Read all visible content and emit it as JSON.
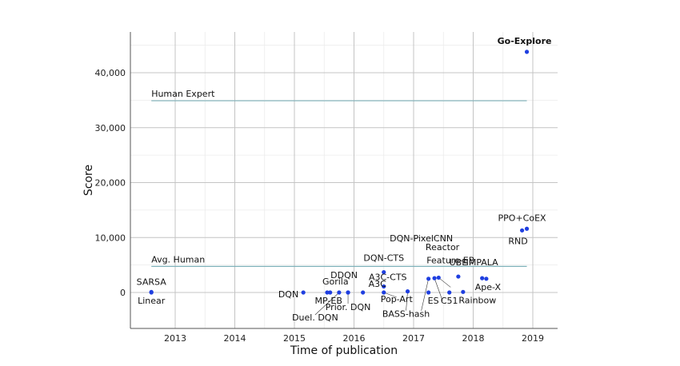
{
  "chart_data": {
    "type": "scatter",
    "title": "",
    "xlabel": "Time of publication",
    "ylabel": "Score",
    "xlim": [
      2012.25,
      2019.4
    ],
    "ylim": [
      -6500,
      47000
    ],
    "xticks": [
      2013,
      2014,
      2015,
      2016,
      2017,
      2018,
      2019
    ],
    "xtick_labels": [
      "2013",
      "2014",
      "2015",
      "2016",
      "2017",
      "2018",
      "2019"
    ],
    "yticks": [
      0,
      10000,
      20000,
      30000,
      40000
    ],
    "ytick_labels": [
      "0",
      "10,000",
      "20,000",
      "30,000",
      "40,000"
    ],
    "grid": true,
    "colors": {
      "points": "#1f3fe0",
      "reference_lines": "#7fb2ba",
      "grid_minor": "#ebebeb",
      "grid_major": "#c4c4c4"
    },
    "reference_lines": [
      {
        "name": "Human Expert",
        "y": 34900,
        "x_start": 2012.6,
        "x_end": 2018.9
      },
      {
        "name": "Avg. Human",
        "y": 4750,
        "x_start": 2012.6,
        "x_end": 2018.9
      }
    ],
    "points": [
      {
        "name": "SARSA",
        "x": 2012.6,
        "y": 100
      },
      {
        "name": "Linear",
        "x": 2012.6,
        "y": 0
      },
      {
        "name": "DQN",
        "x": 2015.15,
        "y": 0
      },
      {
        "name": "Gorila",
        "x": 2015.55,
        "y": 0
      },
      {
        "name": "MP-EB",
        "x": 2015.6,
        "y": 0
      },
      {
        "name": "Duel. DQN",
        "x": 2015.75,
        "y": 0
      },
      {
        "name": "DDQN",
        "x": 2015.9,
        "y": 0
      },
      {
        "name": "Prior. DQN",
        "x": 2015.9,
        "y": 0
      },
      {
        "name": "A3C",
        "x": 2016.15,
        "y": 0
      },
      {
        "name": "DQN-CTS",
        "x": 2016.5,
        "y": 3700
      },
      {
        "name": "A3C-CTS",
        "x": 2016.5,
        "y": 1100
      },
      {
        "name": "Pop-Art",
        "x": 2016.5,
        "y": 0
      },
      {
        "name": "BASS-hash",
        "x": 2016.9,
        "y": 200
      },
      {
        "name": "ES",
        "x": 2017.25,
        "y": 0
      },
      {
        "name": "DQN-PixelCNN",
        "x": 2017.25,
        "y": 2500
      },
      {
        "name": "Reactor",
        "x": 2017.35,
        "y": 2600
      },
      {
        "name": "Feature-EB",
        "x": 2017.42,
        "y": 2700
      },
      {
        "name": "C51",
        "x": 2017.6,
        "y": 0
      },
      {
        "name": "UBE",
        "x": 2017.75,
        "y": 2900
      },
      {
        "name": "Rainbow",
        "x": 2017.83,
        "y": 100
      },
      {
        "name": "IMPALA",
        "x": 2018.15,
        "y": 2600
      },
      {
        "name": "Ape-X",
        "x": 2018.22,
        "y": 2500
      },
      {
        "name": "RND",
        "x": 2018.82,
        "y": 11300
      },
      {
        "name": "PPO+CoEX",
        "x": 2018.9,
        "y": 11600
      },
      {
        "name": "Go-Explore",
        "x": 2018.9,
        "y": 43800
      }
    ]
  }
}
